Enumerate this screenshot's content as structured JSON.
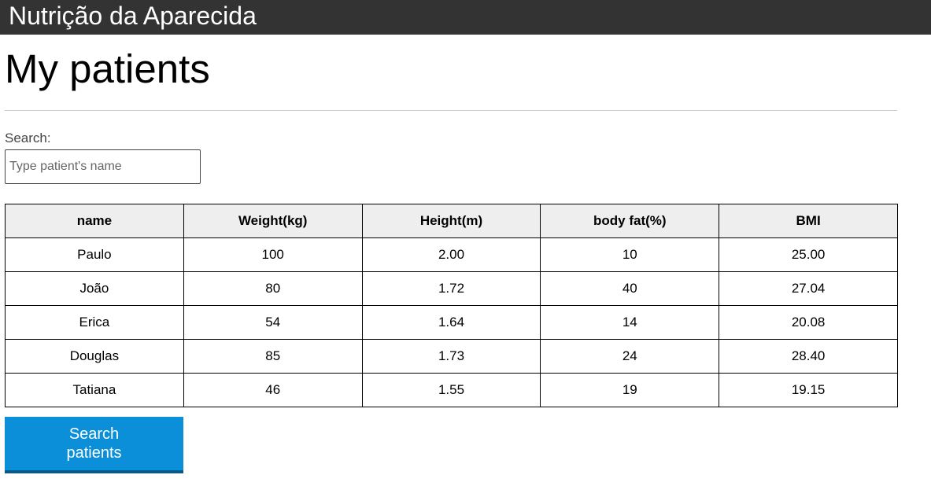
{
  "header": {
    "brand": "Nutrição da Aparecida"
  },
  "main": {
    "title": "My patients",
    "search": {
      "label": "Search:",
      "placeholder": "Type patient's name",
      "value": ""
    },
    "table": {
      "columns": [
        "name",
        "Weight(kg)",
        "Height(m)",
        "body fat(%)",
        "BMI"
      ],
      "rows": [
        [
          "Paulo",
          "100",
          "2.00",
          "10",
          "25.00"
        ],
        [
          "João",
          "80",
          "1.72",
          "40",
          "27.04"
        ],
        [
          "Erica",
          "54",
          "1.64",
          "14",
          "20.08"
        ],
        [
          "Douglas",
          "85",
          "1.73",
          "24",
          "28.40"
        ],
        [
          "Tatiana",
          "46",
          "1.55",
          "19",
          "19.15"
        ]
      ]
    },
    "search_button_label": "Search patients",
    "accent_color": "#0b8fd8",
    "header_color": "#333333"
  }
}
